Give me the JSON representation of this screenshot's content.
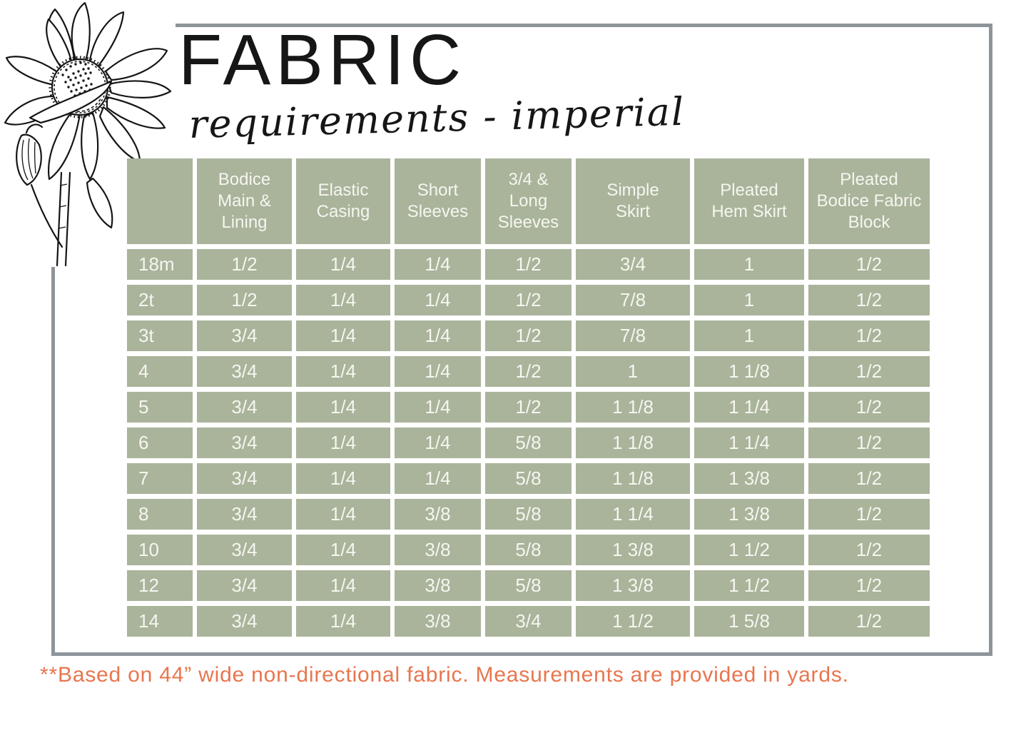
{
  "title": "FABRIC",
  "subtitle": "requirements - imperial",
  "decorations": {
    "sunflower_icon": "black-and-white sunflower line drawing"
  },
  "table": {
    "columns": [
      "",
      "Bodice\nMain &\nLining",
      "Elastic\nCasing",
      "Short\nSleeves",
      "3/4 &\nLong\nSleeves",
      "Simple\nSkirt",
      "Pleated\nHem Skirt",
      "Pleated\nBodice Fabric\nBlock"
    ],
    "rows": [
      {
        "size": "18m",
        "values": [
          "1/2",
          "1/4",
          "1/4",
          "1/2",
          "3/4",
          "1",
          "1/2"
        ]
      },
      {
        "size": "2t",
        "values": [
          "1/2",
          "1/4",
          "1/4",
          "1/2",
          "7/8",
          "1",
          "1/2"
        ]
      },
      {
        "size": "3t",
        "values": [
          "3/4",
          "1/4",
          "1/4",
          "1/2",
          "7/8",
          "1",
          "1/2"
        ]
      },
      {
        "size": "4",
        "values": [
          "3/4",
          "1/4",
          "1/4",
          "1/2",
          "1",
          "1 1/8",
          "1/2"
        ]
      },
      {
        "size": "5",
        "values": [
          "3/4",
          "1/4",
          "1/4",
          "1/2",
          "1 1/8",
          "1 1/4",
          "1/2"
        ]
      },
      {
        "size": "6",
        "values": [
          "3/4",
          "1/4",
          "1/4",
          "5/8",
          "1 1/8",
          "1 1/4",
          "1/2"
        ]
      },
      {
        "size": "7",
        "values": [
          "3/4",
          "1/4",
          "1/4",
          "5/8",
          "1 1/8",
          "1 3/8",
          "1/2"
        ]
      },
      {
        "size": "8",
        "values": [
          "3/4",
          "1/4",
          "3/8",
          "5/8",
          "1 1/4",
          "1 3/8",
          "1/2"
        ]
      },
      {
        "size": "10",
        "values": [
          "3/4",
          "1/4",
          "3/8",
          "5/8",
          "1 3/8",
          "1 1/2",
          "1/2"
        ]
      },
      {
        "size": "12",
        "values": [
          "3/4",
          "1/4",
          "3/8",
          "5/8",
          "1 3/8",
          "1 1/2",
          "1/2"
        ]
      },
      {
        "size": "14",
        "values": [
          "3/4",
          "1/4",
          "3/8",
          "3/4",
          "1 1/2",
          "1 5/8",
          "1/2"
        ]
      }
    ]
  },
  "footnote": "**Based on 44” wide non-directional fabric. Measurements are provided in yards.",
  "colors": {
    "cell_green": "#a9b49b",
    "frame_gray": "#8e959a",
    "footnote_orange": "#e8764e",
    "text_on_green": "#f6f6f0",
    "title_black": "#161616"
  }
}
